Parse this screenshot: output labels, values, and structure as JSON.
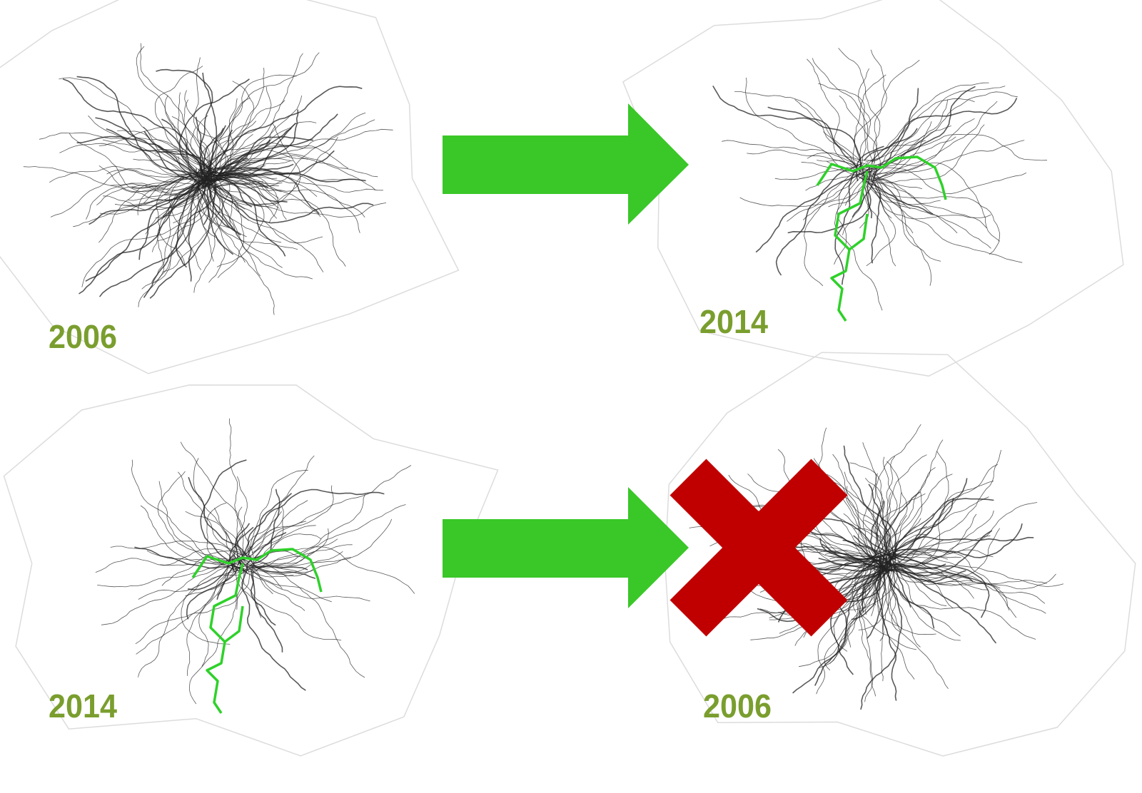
{
  "panels": [
    {
      "label": "2006"
    },
    {
      "label": "2014"
    },
    {
      "label": "2014"
    },
    {
      "label": "2006"
    }
  ]
}
